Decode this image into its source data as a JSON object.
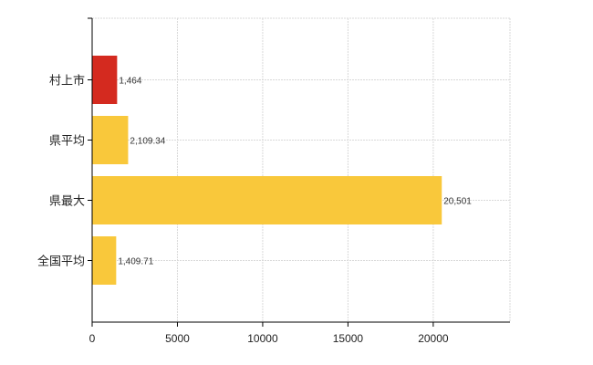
{
  "chart_data": {
    "type": "bar",
    "orientation": "horizontal",
    "categories": [
      "村上市",
      "県平均",
      "県最大",
      "全国平均"
    ],
    "values": [
      1464,
      2109.34,
      20501,
      1409.71
    ],
    "data_labels": [
      "1,464",
      "2,109.34",
      "20,501",
      "1,409.71"
    ],
    "bar_colors": [
      "#d42a1f",
      "#f9c83b",
      "#f9c83b",
      "#f9c83b"
    ],
    "xlim": [
      0,
      24500
    ],
    "xticks": [
      0,
      5000,
      10000,
      15000,
      20000
    ],
    "xtick_labels": [
      "0",
      "5000",
      "10000",
      "15000",
      "20000"
    ],
    "grid": true,
    "legend": false,
    "title": "",
    "xlabel": "",
    "ylabel": ""
  }
}
